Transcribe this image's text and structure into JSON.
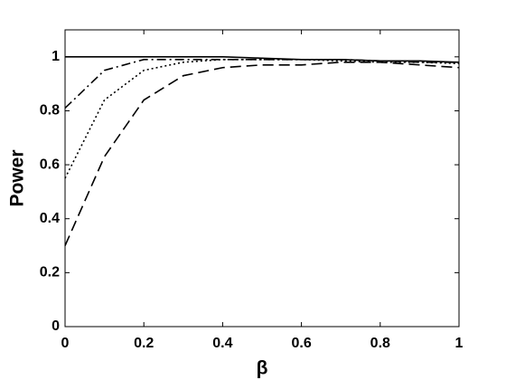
{
  "chart_data": {
    "type": "line",
    "x_label": "β",
    "y_label": "Power",
    "x": [
      0,
      0.1,
      0.2,
      0.3,
      0.4,
      0.5,
      0.6,
      0.7,
      0.8,
      0.9,
      1
    ],
    "series": [
      {
        "color": "#000000",
        "dash": "solid",
        "values": [
          1,
          1,
          1,
          1,
          1,
          0.995,
          0.99,
          0.99,
          0.985,
          0.985,
          0.98
        ]
      },
      {
        "color": "#000000",
        "dash": "dashdot",
        "values": [
          0.81,
          0.95,
          0.99,
          0.99,
          0.99,
          0.99,
          0.99,
          0.99,
          0.985,
          0.98,
          0.98
        ]
      },
      {
        "color": "#000000",
        "dash": "dotted",
        "values": [
          0.55,
          0.84,
          0.95,
          0.98,
          0.99,
          0.99,
          0.99,
          0.985,
          0.98,
          0.98,
          0.975
        ]
      },
      {
        "color": "#000000",
        "dash": "dashed",
        "values": [
          0.3,
          0.63,
          0.84,
          0.93,
          0.96,
          0.97,
          0.97,
          0.98,
          0.98,
          0.97,
          0.96
        ]
      }
    ],
    "xlim": [
      0,
      1
    ],
    "ylim": [
      0,
      1.1
    ],
    "xticks": [
      0,
      0.2,
      0.4,
      0.6,
      0.8,
      1
    ],
    "yticks": [
      0,
      0.2,
      0.4,
      0.6,
      0.8,
      1
    ],
    "grid": false
  }
}
